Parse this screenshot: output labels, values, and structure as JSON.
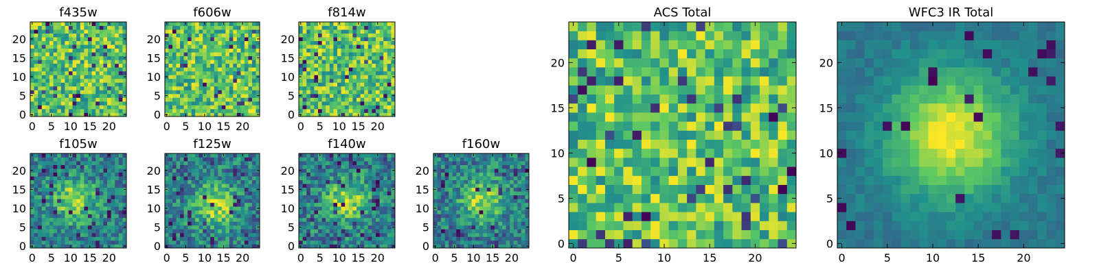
{
  "figure_title": "",
  "colormap": [
    "#440154",
    "#3b528b",
    "#21918c",
    "#5ec962",
    "#fde725"
  ],
  "chart_data": [
    {
      "type": "heatmap",
      "title": "f435w",
      "grid": 25,
      "style": "noise",
      "seed": 11,
      "xticks": [
        0,
        5,
        10,
        15,
        20
      ],
      "yticks": [
        0,
        5,
        10,
        15,
        20
      ],
      "xlim": [
        0,
        25
      ],
      "ylim": [
        0,
        25
      ]
    },
    {
      "type": "heatmap",
      "title": "f606w",
      "grid": 25,
      "style": "noise",
      "seed": 23,
      "xticks": [
        0,
        5,
        10,
        15,
        20
      ],
      "yticks": [
        0,
        5,
        10,
        15,
        20
      ],
      "xlim": [
        0,
        25
      ],
      "ylim": [
        0,
        25
      ]
    },
    {
      "type": "heatmap",
      "title": "f814w",
      "grid": 25,
      "style": "noise",
      "seed": 37,
      "xticks": [
        0,
        5,
        10,
        15,
        20
      ],
      "yticks": [
        0,
        5,
        10,
        15,
        20
      ],
      "xlim": [
        0,
        25
      ],
      "ylim": [
        0,
        25
      ]
    },
    {
      "type": "heatmap",
      "title": "f105w",
      "grid": 25,
      "style": "source",
      "seed": 41,
      "center": [
        11,
        12
      ],
      "xticks": [
        0,
        5,
        10,
        15,
        20
      ],
      "yticks": [
        0,
        5,
        10,
        15,
        20
      ],
      "xlim": [
        0,
        25
      ],
      "ylim": [
        0,
        25
      ]
    },
    {
      "type": "heatmap",
      "title": "f125w",
      "grid": 25,
      "style": "source",
      "seed": 53,
      "center": [
        13,
        11
      ],
      "xticks": [
        0,
        5,
        10,
        15,
        20
      ],
      "yticks": [
        0,
        5,
        10,
        15,
        20
      ],
      "xlim": [
        0,
        25
      ],
      "ylim": [
        0,
        25
      ]
    },
    {
      "type": "heatmap",
      "title": "f140w",
      "grid": 25,
      "style": "source",
      "seed": 67,
      "center": [
        12,
        12
      ],
      "xticks": [
        0,
        5,
        10,
        15,
        20
      ],
      "yticks": [
        0,
        5,
        10,
        15,
        20
      ],
      "xlim": [
        0,
        25
      ],
      "ylim": [
        0,
        25
      ]
    },
    {
      "type": "heatmap",
      "title": "f160w",
      "grid": 25,
      "style": "source",
      "seed": 79,
      "center": [
        12,
        12
      ],
      "xticks": [
        0,
        5,
        10,
        15,
        20
      ],
      "yticks": [
        0,
        5,
        10,
        15,
        20
      ],
      "xlim": [
        0,
        25
      ],
      "ylim": [
        0,
        25
      ]
    },
    {
      "type": "heatmap",
      "title": "ACS Total",
      "grid": 25,
      "style": "noise",
      "seed": 89,
      "xticks": [
        0,
        5,
        10,
        15,
        20
      ],
      "yticks": [
        0,
        5,
        10,
        15,
        20
      ],
      "xlim": [
        0,
        25
      ],
      "ylim": [
        0,
        25
      ]
    },
    {
      "type": "heatmap",
      "title": "WFC3 IR Total",
      "grid": 25,
      "style": "smooth",
      "seed": 97,
      "center": [
        12,
        12
      ],
      "xticks": [
        0,
        5,
        10,
        15,
        20
      ],
      "yticks": [
        0,
        5,
        10,
        15,
        20
      ],
      "xlim": [
        0,
        25
      ],
      "ylim": [
        0,
        25
      ]
    }
  ]
}
